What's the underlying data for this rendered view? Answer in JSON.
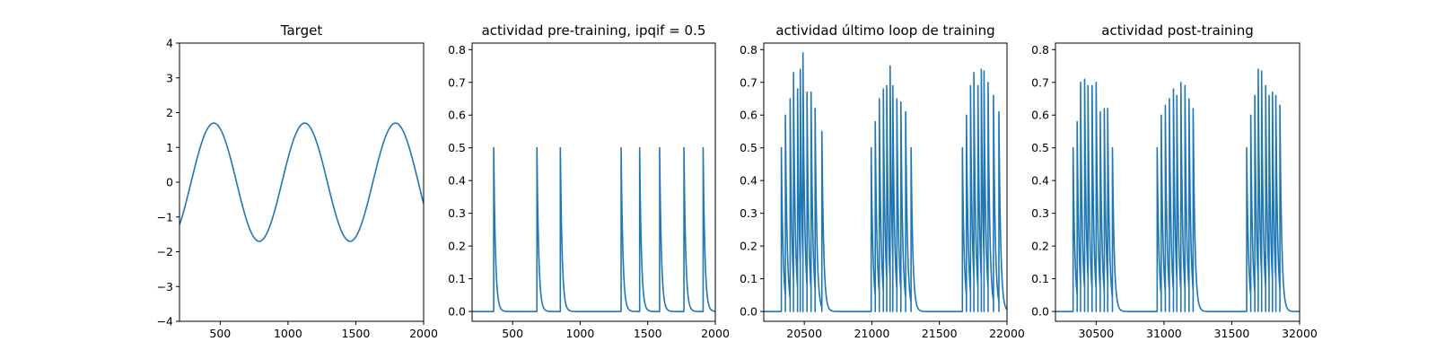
{
  "chart_data": [
    {
      "type": "line",
      "title": "Target",
      "xlim": [
        200,
        2000
      ],
      "ylim": [
        -4,
        4
      ],
      "xticks": [
        500,
        1000,
        1500,
        2000
      ],
      "yticks": [
        -4,
        -3,
        -2,
        -1,
        0,
        1,
        2,
        3,
        4
      ],
      "grid": false,
      "series": [
        {
          "color": "#1f77b4",
          "kind": "sine",
          "amplitude": 1.7,
          "period": 670,
          "peak_at": 453,
          "x_start": 200,
          "x_end": 2000
        }
      ]
    },
    {
      "type": "line",
      "title": "actividad pre-training, ipqif = 0.5",
      "xlim": [
        200,
        2000
      ],
      "ylim": [
        -0.03,
        0.82
      ],
      "xticks": [
        500,
        1000,
        1500,
        2000
      ],
      "yticks": [
        0.0,
        0.1,
        0.2,
        0.3,
        0.4,
        0.5,
        0.6,
        0.7,
        0.8
      ],
      "grid": false,
      "series": [
        {
          "color": "#1f77b4",
          "kind": "spikes",
          "decay": 13,
          "x_start": 200,
          "x_end": 2000,
          "spike_times": [
            360,
            680,
            853,
            1303,
            1440,
            1588,
            1768,
            1910
          ],
          "spike_peaks": [
            0.5,
            0.5,
            0.5,
            0.5,
            0.5,
            0.5,
            0.5,
            0.5
          ]
        }
      ]
    },
    {
      "type": "line",
      "title": "actividad último loop de training",
      "xlim": [
        20200,
        22000
      ],
      "ylim": [
        -0.03,
        0.82
      ],
      "xticks": [
        20500,
        21000,
        21500,
        22000
      ],
      "yticks": [
        0.0,
        0.1,
        0.2,
        0.3,
        0.4,
        0.5,
        0.6,
        0.7,
        0.8
      ],
      "grid": false,
      "series": [
        {
          "color": "#1f77b4",
          "kind": "spikes",
          "decay": 13,
          "x_start": 20200,
          "x_end": 22000,
          "spike_times": [
            20330,
            20360,
            20395,
            20420,
            20450,
            20470,
            20490,
            20520,
            20550,
            20580,
            20630,
            20995,
            21025,
            21055,
            21085,
            21110,
            21135,
            21155,
            21185,
            21215,
            21250,
            21290,
            21670,
            21700,
            21730,
            21755,
            21785,
            21810,
            21830,
            21860,
            21900,
            21940
          ],
          "spike_peaks": [
            0.5,
            0.6,
            0.65,
            0.73,
            0.68,
            0.74,
            0.79,
            0.67,
            0.67,
            0.62,
            0.55,
            0.5,
            0.58,
            0.65,
            0.68,
            0.69,
            0.75,
            0.69,
            0.65,
            0.64,
            0.61,
            0.5,
            0.5,
            0.6,
            0.69,
            0.73,
            0.69,
            0.74,
            0.735,
            0.7,
            0.66,
            0.61
          ]
        }
      ]
    },
    {
      "type": "line",
      "title": "actividad post-training",
      "xlim": [
        30200,
        32000
      ],
      "ylim": [
        -0.03,
        0.82
      ],
      "xticks": [
        30500,
        31000,
        31500,
        32000
      ],
      "yticks": [
        0.0,
        0.1,
        0.2,
        0.3,
        0.4,
        0.5,
        0.6,
        0.7,
        0.8
      ],
      "grid": false,
      "series": [
        {
          "color": "#1f77b4",
          "kind": "spikes",
          "decay": 13,
          "x_start": 30200,
          "x_end": 32000,
          "spike_times": [
            30330,
            30360,
            30385,
            30415,
            30440,
            30470,
            30500,
            30530,
            30560,
            30585,
            30620,
            30950,
            30980,
            31010,
            31040,
            31070,
            31095,
            31125,
            31155,
            31185,
            31215,
            31610,
            31640,
            31670,
            31695,
            31720,
            31750,
            31775,
            31800,
            31825,
            31855
          ],
          "spike_peaks": [
            0.5,
            0.58,
            0.7,
            0.71,
            0.69,
            0.69,
            0.7,
            0.61,
            0.62,
            0.62,
            0.5,
            0.5,
            0.6,
            0.63,
            0.65,
            0.68,
            0.66,
            0.7,
            0.69,
            0.65,
            0.62,
            0.5,
            0.6,
            0.66,
            0.74,
            0.735,
            0.69,
            0.66,
            0.67,
            0.66,
            0.63
          ]
        }
      ]
    }
  ]
}
